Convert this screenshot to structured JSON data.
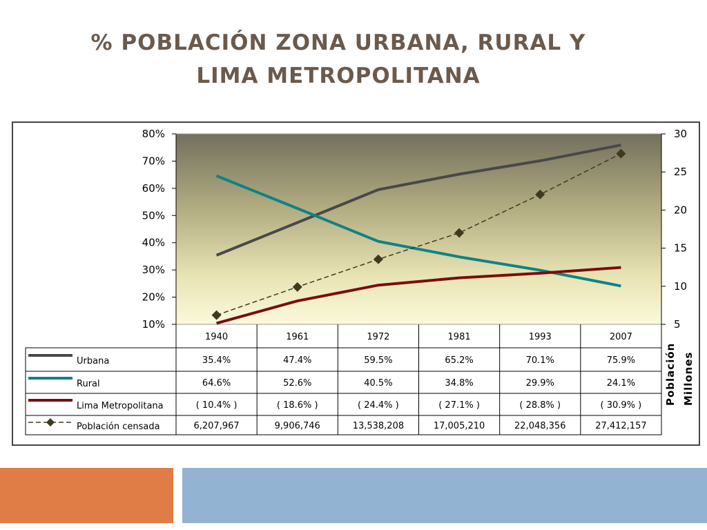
{
  "slide": {
    "title_line1": "% POBLACIÓN ZONA URBANA, RURAL Y",
    "title_line2": "LIMA METROPOLITANA"
  },
  "colors": {
    "title": "#6b5a4c",
    "urbana": "#48484a",
    "rural": "#0f8286",
    "lima": "#7a0d0d",
    "poblacion": "#3d3a1e",
    "footer_orange": "#e07c45",
    "footer_blue": "#93b3d3"
  },
  "chart_data": {
    "type": "line",
    "categories": [
      "1940",
      "1961",
      "1972",
      "1981",
      "1993",
      "2007"
    ],
    "y_left": {
      "ticks": [
        "10%",
        "20%",
        "30%",
        "40%",
        "50%",
        "60%",
        "70%",
        "80%"
      ],
      "range": [
        10,
        80
      ]
    },
    "y_right": {
      "ticks": [
        "5",
        "10",
        "15",
        "20",
        "25",
        "30"
      ],
      "range": [
        5,
        30
      ],
      "title_line1": "Población",
      "title_line2": "Millones"
    },
    "series": [
      {
        "name": "Urbana",
        "axis": "left",
        "style": "solid",
        "values": [
          35.4,
          47.4,
          59.5,
          65.2,
          70.1,
          75.9
        ],
        "table": [
          "35.4%",
          "47.4%",
          "59.5%",
          "65.2%",
          "70.1%",
          "75.9%"
        ]
      },
      {
        "name": "Rural",
        "axis": "left",
        "style": "solid",
        "values": [
          64.6,
          52.6,
          40.5,
          34.8,
          29.9,
          24.1
        ],
        "table": [
          "64.6%",
          "52.6%",
          "40.5%",
          "34.8%",
          "29.9%",
          "24.1%"
        ]
      },
      {
        "name": "Lima Metropolitana",
        "axis": "left",
        "style": "solid",
        "values": [
          10.4,
          18.6,
          24.4,
          27.1,
          28.8,
          30.9
        ],
        "table": [
          "( 10.4% )",
          "( 18.6% )",
          "( 24.4% )",
          "( 27.1% )",
          "( 28.8% )",
          "( 30.9% )"
        ]
      },
      {
        "name": "Población censada",
        "axis": "right",
        "style": "dashed-diamond",
        "values": [
          6.207967,
          9.906746,
          13.538208,
          17.00521,
          22.048356,
          27.412157
        ],
        "table": [
          "6,207,967",
          "9,906,746",
          "13,538,208",
          "17,005,210",
          "22,048,356",
          "27,412,157"
        ]
      }
    ]
  }
}
